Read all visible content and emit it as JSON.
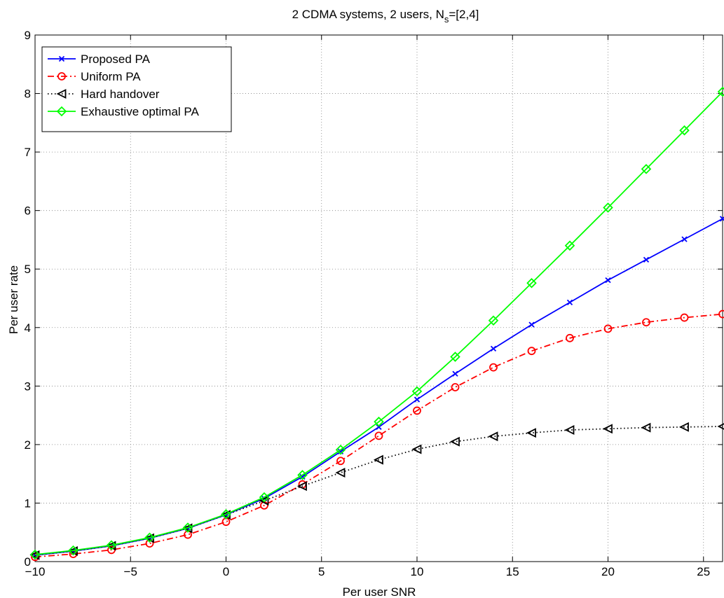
{
  "chart_data": {
    "type": "line",
    "title": "2 CDMA systems, 2 users, N",
    "title_subscript": "s",
    "title_suffix": "=[2,4]",
    "xlabel": "Per user SNR",
    "ylabel": "Per user rate",
    "xlim": [
      -10,
      26
    ],
    "ylim": [
      0,
      9
    ],
    "xticks": [
      -10,
      -5,
      0,
      5,
      10,
      15,
      20,
      25
    ],
    "xtick_labels": [
      "−10",
      "−5",
      "0",
      "5",
      "10",
      "15",
      "20",
      "25"
    ],
    "yticks": [
      0,
      1,
      2,
      3,
      4,
      5,
      6,
      7,
      8,
      9
    ],
    "ytick_labels": [
      "0",
      "1",
      "2",
      "3",
      "4",
      "5",
      "6",
      "7",
      "8",
      "9"
    ],
    "grid": true,
    "legend_position": "top-left",
    "x": [
      -10,
      -8,
      -6,
      -4,
      -2,
      0,
      2,
      4,
      6,
      8,
      10,
      12,
      14,
      16,
      18,
      20,
      22,
      24,
      26
    ],
    "series": [
      {
        "name": "Proposed PA",
        "color": "#0000ff",
        "line_style": "solid",
        "marker": "x",
        "values": [
          0.11,
          0.18,
          0.27,
          0.4,
          0.57,
          0.8,
          1.08,
          1.45,
          1.88,
          2.3,
          2.77,
          3.21,
          3.64,
          4.05,
          4.43,
          4.81,
          5.16,
          5.51,
          5.86
        ]
      },
      {
        "name": "Uniform PA",
        "color": "#ff0000",
        "line_style": "dashdot",
        "marker": "circle",
        "values": [
          0.08,
          0.13,
          0.2,
          0.31,
          0.46,
          0.68,
          0.96,
          1.32,
          1.72,
          2.15,
          2.58,
          2.98,
          3.32,
          3.6,
          3.82,
          3.98,
          4.09,
          4.17,
          4.23
        ]
      },
      {
        "name": "Hard handover",
        "color": "#000000",
        "line_style": "dotted",
        "marker": "triangle-left",
        "values": [
          0.11,
          0.18,
          0.27,
          0.4,
          0.57,
          0.8,
          1.04,
          1.29,
          1.52,
          1.74,
          1.92,
          2.05,
          2.14,
          2.2,
          2.25,
          2.27,
          2.29,
          2.3,
          2.31
        ]
      },
      {
        "name": "Exhaustive optimal PA",
        "color": "#00ff00",
        "line_style": "solid",
        "marker": "diamond",
        "values": [
          0.12,
          0.19,
          0.28,
          0.41,
          0.58,
          0.81,
          1.1,
          1.48,
          1.91,
          2.39,
          2.91,
          3.5,
          4.12,
          4.76,
          5.4,
          6.05,
          6.71,
          7.37,
          8.03
        ]
      }
    ]
  }
}
